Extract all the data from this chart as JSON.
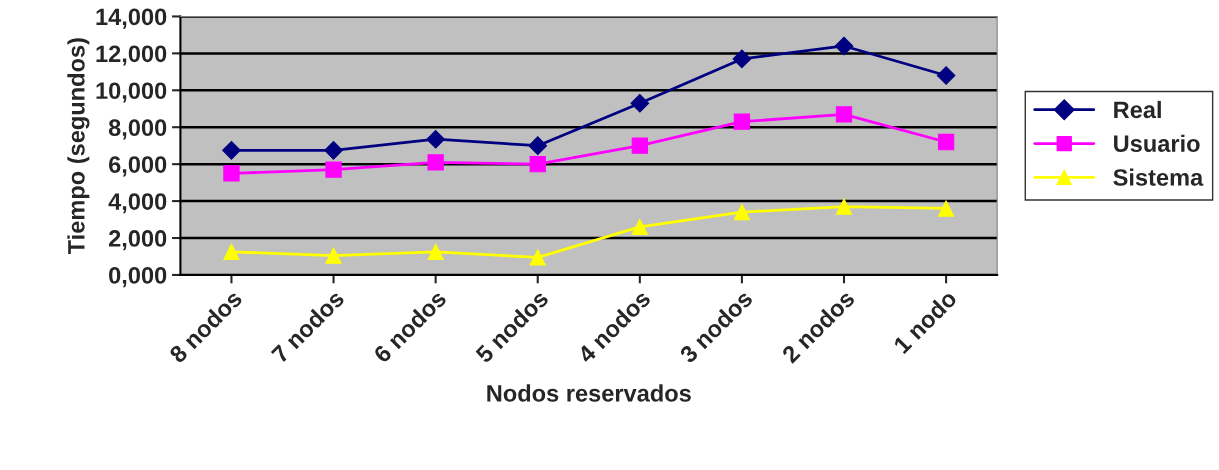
{
  "chart_data": {
    "type": "line",
    "xlabel": "Nodos reservados",
    "ylabel": "Tiempo (segundos)",
    "categories": [
      "8 nodos",
      "7 nodos",
      "6 nodos",
      "5 nodos",
      "4 nodos",
      "3 nodos",
      "2 nodos",
      "1 nodo"
    ],
    "series": [
      {
        "name": "Real",
        "color": "#000080",
        "marker": "diamond",
        "values": [
          6750,
          6750,
          7350,
          7000,
          9300,
          11700,
          12400,
          10800
        ]
      },
      {
        "name": "Usuario",
        "color": "#ff00ff",
        "marker": "square",
        "values": [
          5500,
          5700,
          6100,
          6000,
          7000,
          8300,
          8700,
          7200
        ]
      },
      {
        "name": "Sistema",
        "color": "#ffff00",
        "marker": "triangle",
        "values": [
          1250,
          1050,
          1250,
          950,
          2600,
          3400,
          3700,
          3600
        ]
      }
    ],
    "ylim": [
      0,
      14000
    ],
    "yticks": [
      {
        "value": 0,
        "label": "0,000"
      },
      {
        "value": 2000,
        "label": "2,000"
      },
      {
        "value": 4000,
        "label": "4,000"
      },
      {
        "value": 6000,
        "label": "6,000"
      },
      {
        "value": 8000,
        "label": "8,000"
      },
      {
        "value": 10000,
        "label": "10,000"
      },
      {
        "value": 12000,
        "label": "12,000"
      },
      {
        "value": 14000,
        "label": "14,000"
      }
    ],
    "grid": "y",
    "legend": "right"
  }
}
